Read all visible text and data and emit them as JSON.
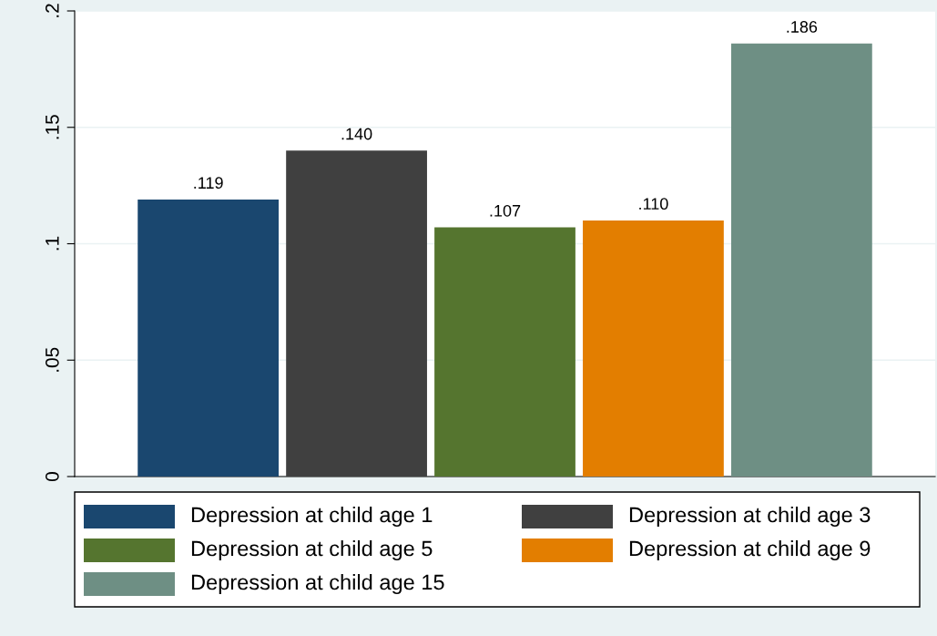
{
  "chart_data": {
    "type": "bar",
    "categories": [
      null
    ],
    "series": [
      {
        "name": "Depression at child age 1",
        "color": "#1a476f",
        "values": [
          0.119
        ],
        "value_labels": [
          ".119"
        ]
      },
      {
        "name": "Depression at child age 3",
        "color": "#404040",
        "values": [
          0.14
        ],
        "value_labels": [
          ".140"
        ]
      },
      {
        "name": "Depression at child age 5",
        "color": "#55752f",
        "values": [
          0.107
        ],
        "value_labels": [
          ".107"
        ]
      },
      {
        "name": "Depression at child age 9",
        "color": "#e37e00",
        "values": [
          0.11
        ],
        "value_labels": [
          ".110"
        ]
      },
      {
        "name": "Depression at child age 15",
        "color": "#6e8f84",
        "values": [
          0.186
        ],
        "value_labels": [
          ".186"
        ]
      }
    ],
    "ylim": [
      0,
      0.2
    ],
    "yticks": [
      0,
      {
        "value": 0.05,
        "label": ".05"
      },
      {
        "value": 0.1,
        "label": ".1"
      },
      {
        "value": 0.15,
        "label": ".15"
      },
      {
        "value": 0.2,
        "label": ".2"
      }
    ],
    "grid": "y",
    "legend": "bottom"
  }
}
